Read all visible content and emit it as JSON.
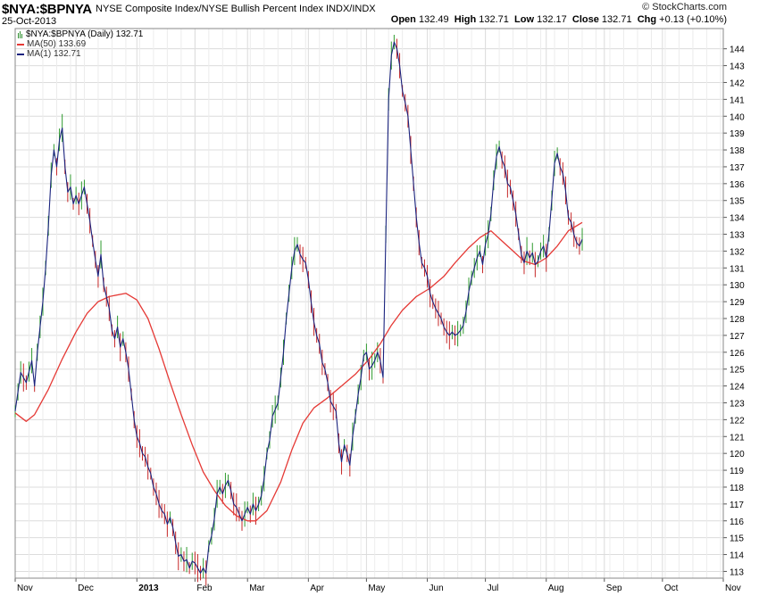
{
  "header": {
    "symbol": "$NYA:$BPNYA",
    "description": "NYSE Composite Index/NYSE Bullish Percent Index  INDX/INDX",
    "date": "25-Oct-2013",
    "brand": "© StockCharts.com",
    "open_label": "Open",
    "open_value": "132.49",
    "high_label": "High",
    "high_value": "132.71",
    "low_label": "Low",
    "low_value": "132.17",
    "close_label": "Close",
    "close_value": "132.71",
    "chg_label": "Chg",
    "chg_value": "+0.13 (+0.10%)"
  },
  "legend": {
    "main": "$NYA:$BPNYA (Daily) 132.71",
    "ma50": "MA(50) 133.69",
    "ma1": "MA(1) 132.71"
  },
  "colors": {
    "price": "#1a237e",
    "ma50": "#e53935",
    "up_tick": "#2e9a2e",
    "down_tick": "#c62828",
    "grid": "#dcdcdc"
  },
  "chart_data": {
    "type": "line",
    "ylim": [
      112.6,
      145.2
    ],
    "y_ticks": [
      113,
      114,
      115,
      116,
      117,
      118,
      119,
      120,
      121,
      122,
      123,
      124,
      125,
      126,
      127,
      128,
      129,
      130,
      131,
      132,
      133,
      134,
      135,
      136,
      137,
      138,
      139,
      140,
      141,
      142,
      143,
      144
    ],
    "x_labels": [
      "Nov",
      "Dec",
      "2013",
      "Feb",
      "Mar",
      "Apr",
      "May",
      "Jun",
      "Jul",
      "Aug",
      "Sep",
      "Oct",
      "Nov"
    ],
    "x_label_pos": [
      0,
      22,
      44,
      65,
      84,
      106,
      127,
      149,
      170,
      192,
      213,
      234,
      256
    ],
    "series": [
      {
        "name": "MA(1)",
        "points": [
          [
            0,
            122.5
          ],
          [
            2,
            124.8
          ],
          [
            4,
            124.2
          ],
          [
            6,
            125.5
          ],
          [
            7,
            124.0
          ],
          [
            8,
            126.0
          ],
          [
            10,
            129.0
          ],
          [
            11,
            131.0
          ],
          [
            12,
            133.5
          ],
          [
            13,
            136.5
          ],
          [
            14,
            138.0
          ],
          [
            15,
            137.0
          ],
          [
            16,
            138.6
          ],
          [
            17,
            139.3
          ],
          [
            18,
            137.0
          ],
          [
            19,
            135.5
          ],
          [
            20,
            135.8
          ],
          [
            21,
            134.8
          ],
          [
            22,
            135.3
          ],
          [
            23,
            134.8
          ],
          [
            24,
            135.3
          ],
          [
            25,
            135.8
          ],
          [
            26,
            134.8
          ],
          [
            27,
            133.8
          ],
          [
            28,
            132.6
          ],
          [
            29,
            131.5
          ],
          [
            30,
            130.5
          ],
          [
            31,
            131.8
          ],
          [
            32,
            130.0
          ],
          [
            33,
            129.3
          ],
          [
            34,
            128.6
          ],
          [
            35,
            127.3
          ],
          [
            36,
            126.8
          ],
          [
            37,
            127.5
          ],
          [
            38,
            126.3
          ],
          [
            39,
            126.8
          ],
          [
            40,
            126.0
          ],
          [
            41,
            125.0
          ],
          [
            42,
            123.5
          ],
          [
            43,
            122.0
          ],
          [
            44,
            121.0
          ],
          [
            45,
            120.6
          ],
          [
            46,
            120.0
          ],
          [
            47,
            119.8
          ],
          [
            48,
            119.2
          ],
          [
            49,
            118.8
          ],
          [
            50,
            118.0
          ],
          [
            51,
            117.6
          ],
          [
            52,
            117.0
          ],
          [
            53,
            116.6
          ],
          [
            54,
            116.4
          ],
          [
            55,
            115.8
          ],
          [
            56,
            116.2
          ],
          [
            57,
            115.6
          ],
          [
            58,
            114.7
          ],
          [
            59,
            113.9
          ],
          [
            60,
            114.0
          ],
          [
            61,
            113.6
          ],
          [
            62,
            113.7
          ],
          [
            63,
            113.2
          ],
          [
            64,
            113.6
          ],
          [
            65,
            113.5
          ],
          [
            66,
            113.2
          ],
          [
            67,
            112.9
          ],
          [
            68,
            113.2
          ],
          [
            69,
            112.9
          ],
          [
            70,
            114.5
          ],
          [
            71,
            115.1
          ],
          [
            72,
            116.1
          ],
          [
            73,
            117.6
          ],
          [
            74,
            118.0
          ],
          [
            75,
            117.6
          ],
          [
            76,
            118.1
          ],
          [
            77,
            118.4
          ],
          [
            78,
            117.8
          ],
          [
            79,
            117.0
          ],
          [
            80,
            116.8
          ],
          [
            81,
            116.4
          ],
          [
            82,
            116.0
          ],
          [
            83,
            116.4
          ],
          [
            84,
            116.8
          ],
          [
            85,
            116.4
          ],
          [
            86,
            117.0
          ],
          [
            87,
            116.6
          ],
          [
            88,
            117.0
          ],
          [
            89,
            117.5
          ],
          [
            90,
            118.5
          ],
          [
            91,
            120.0
          ],
          [
            92,
            120.8
          ],
          [
            93,
            122.2
          ],
          [
            94,
            122.6
          ],
          [
            95,
            123.0
          ],
          [
            96,
            124.5
          ],
          [
            97,
            126.0
          ],
          [
            98,
            128.0
          ],
          [
            99,
            129.5
          ],
          [
            100,
            131.0
          ],
          [
            101,
            132.0
          ],
          [
            102,
            132.4
          ],
          [
            103,
            131.8
          ],
          [
            104,
            131.5
          ],
          [
            105,
            131.3
          ],
          [
            106,
            130.3
          ],
          [
            107,
            129.0
          ],
          [
            108,
            127.8
          ],
          [
            109,
            127.0
          ],
          [
            110,
            126.5
          ],
          [
            111,
            125.4
          ],
          [
            112,
            125.0
          ],
          [
            113,
            124.2
          ],
          [
            114,
            123.1
          ],
          [
            115,
            122.8
          ],
          [
            116,
            122.5
          ],
          [
            117,
            120.6
          ],
          [
            118,
            119.5
          ],
          [
            119,
            120.5
          ],
          [
            120,
            120.0
          ],
          [
            121,
            119.3
          ],
          [
            122,
            121.0
          ],
          [
            123,
            122.2
          ],
          [
            124,
            123.5
          ],
          [
            125,
            124.5
          ],
          [
            126,
            125.8
          ],
          [
            127,
            126.0
          ],
          [
            128,
            125.0
          ],
          [
            129,
            125.2
          ],
          [
            130,
            125.5
          ],
          [
            131,
            126.0
          ],
          [
            132,
            125.5
          ],
          [
            133,
            124.5
          ],
          [
            134,
            133.0
          ],
          [
            135,
            141.0
          ],
          [
            136,
            143.6
          ],
          [
            137,
            144.4
          ],
          [
            138,
            144.0
          ],
          [
            139,
            143.0
          ],
          [
            140,
            141.5
          ],
          [
            141,
            140.8
          ],
          [
            142,
            140.0
          ],
          [
            143,
            138.0
          ],
          [
            144,
            136.0
          ],
          [
            145,
            134.0
          ],
          [
            146,
            132.5
          ],
          [
            147,
            131.3
          ],
          [
            148,
            131.0
          ],
          [
            149,
            130.5
          ],
          [
            150,
            129.5
          ],
          [
            151,
            129.0
          ],
          [
            152,
            128.6
          ],
          [
            153,
            128.3
          ],
          [
            154,
            128.0
          ],
          [
            155,
            127.5
          ],
          [
            156,
            127.2
          ],
          [
            157,
            127.0
          ],
          [
            158,
            127.2
          ],
          [
            159,
            127.0
          ],
          [
            160,
            127.1
          ],
          [
            161,
            127.3
          ],
          [
            162,
            127.6
          ],
          [
            163,
            128.4
          ],
          [
            164,
            129.6
          ],
          [
            165,
            130.4
          ],
          [
            166,
            131.0
          ],
          [
            167,
            131.6
          ],
          [
            168,
            132.0
          ],
          [
            169,
            131.2
          ],
          [
            170,
            132.4
          ],
          [
            171,
            133.0
          ],
          [
            172,
            134.2
          ],
          [
            173,
            136.2
          ],
          [
            174,
            137.6
          ],
          [
            175,
            138.2
          ],
          [
            176,
            137.4
          ],
          [
            177,
            137.0
          ],
          [
            178,
            136.0
          ],
          [
            179,
            135.8
          ],
          [
            180,
            135.0
          ],
          [
            181,
            134.2
          ],
          [
            182,
            133.0
          ],
          [
            183,
            131.8
          ],
          [
            184,
            131.3
          ],
          [
            185,
            132.0
          ],
          [
            186,
            131.6
          ],
          [
            187,
            131.9
          ],
          [
            188,
            131.2
          ],
          [
            189,
            131.4
          ],
          [
            190,
            132.0
          ],
          [
            191,
            132.3
          ],
          [
            192,
            131.6
          ],
          [
            193,
            133.0
          ],
          [
            194,
            135.0
          ],
          [
            195,
            137.2
          ],
          [
            196,
            137.8
          ],
          [
            197,
            137.0
          ],
          [
            198,
            136.6
          ],
          [
            199,
            135.6
          ],
          [
            200,
            134.0
          ],
          [
            201,
            133.7
          ],
          [
            202,
            133.0
          ],
          [
            203,
            132.5
          ],
          [
            204,
            132.3
          ],
          [
            205,
            132.7
          ]
        ]
      },
      {
        "name": "MA(50)",
        "points": [
          [
            0,
            122.4
          ],
          [
            4,
            121.9
          ],
          [
            7,
            122.3
          ],
          [
            12,
            123.8
          ],
          [
            17,
            125.6
          ],
          [
            22,
            127.2
          ],
          [
            26,
            128.3
          ],
          [
            30,
            129.0
          ],
          [
            34,
            129.3
          ],
          [
            40,
            129.5
          ],
          [
            44,
            129.1
          ],
          [
            48,
            128.0
          ],
          [
            52,
            126.2
          ],
          [
            56,
            124.2
          ],
          [
            60,
            122.3
          ],
          [
            64,
            120.5
          ],
          [
            68,
            118.9
          ],
          [
            72,
            117.8
          ],
          [
            76,
            116.9
          ],
          [
            80,
            116.3
          ],
          [
            84,
            116.0
          ],
          [
            87,
            116.0
          ],
          [
            91,
            116.6
          ],
          [
            96,
            118.3
          ],
          [
            100,
            120.2
          ],
          [
            104,
            121.8
          ],
          [
            108,
            122.7
          ],
          [
            113,
            123.3
          ],
          [
            118,
            124.0
          ],
          [
            123,
            124.7
          ],
          [
            128,
            125.6
          ],
          [
            132,
            126.5
          ],
          [
            136,
            127.6
          ],
          [
            140,
            128.5
          ],
          [
            145,
            129.3
          ],
          [
            150,
            129.8
          ],
          [
            155,
            130.5
          ],
          [
            159,
            131.3
          ],
          [
            164,
            132.2
          ],
          [
            168,
            132.8
          ],
          [
            172,
            133.2
          ],
          [
            176,
            132.6
          ],
          [
            180,
            132.0
          ],
          [
            184,
            131.4
          ],
          [
            188,
            131.2
          ],
          [
            192,
            131.6
          ],
          [
            196,
            132.3
          ],
          [
            200,
            133.2
          ],
          [
            205,
            133.7
          ]
        ]
      }
    ]
  }
}
